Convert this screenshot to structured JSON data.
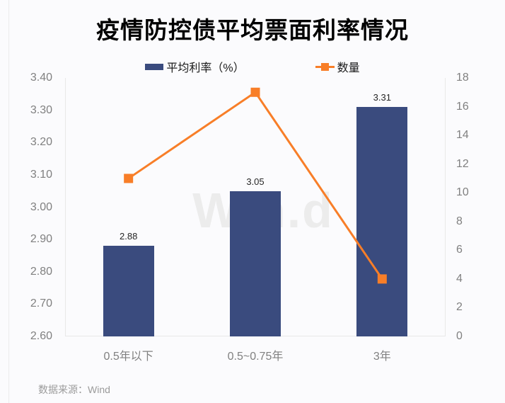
{
  "page": {
    "watermark": "Win.d",
    "source_note": "数据来源：Wind",
    "background_color": "#fbfbfd"
  },
  "chart_data": {
    "type": "bar+line",
    "title": "疫情防控债平均票面利率情况",
    "categories": [
      "0.5年以下",
      "0.5~0.75年",
      "3年"
    ],
    "series": [
      {
        "name": "平均利率（%）",
        "type": "bar",
        "axis": "left",
        "values": [
          2.88,
          3.05,
          3.31
        ],
        "data_labels": [
          "2.88",
          "3.05",
          "3.31"
        ],
        "color": "#3a4b7e"
      },
      {
        "name": "数量",
        "type": "line",
        "axis": "right",
        "values": [
          11,
          17,
          4
        ],
        "marker": "square",
        "color": "#f87e28"
      }
    ],
    "left_axis": {
      "min": 2.6,
      "max": 3.4,
      "step": 0.1,
      "ticks": [
        "3.40",
        "3.30",
        "3.20",
        "3.10",
        "3.00",
        "2.90",
        "2.80",
        "2.70",
        "2.60"
      ]
    },
    "right_axis": {
      "min": 0,
      "max": 18,
      "step": 2,
      "ticks": [
        "18",
        "16",
        "14",
        "12",
        "10",
        "8",
        "6",
        "4",
        "2",
        "0"
      ]
    },
    "legend_position": "top",
    "grid": false,
    "tick_color": "#808080",
    "label_color": "#262626"
  }
}
